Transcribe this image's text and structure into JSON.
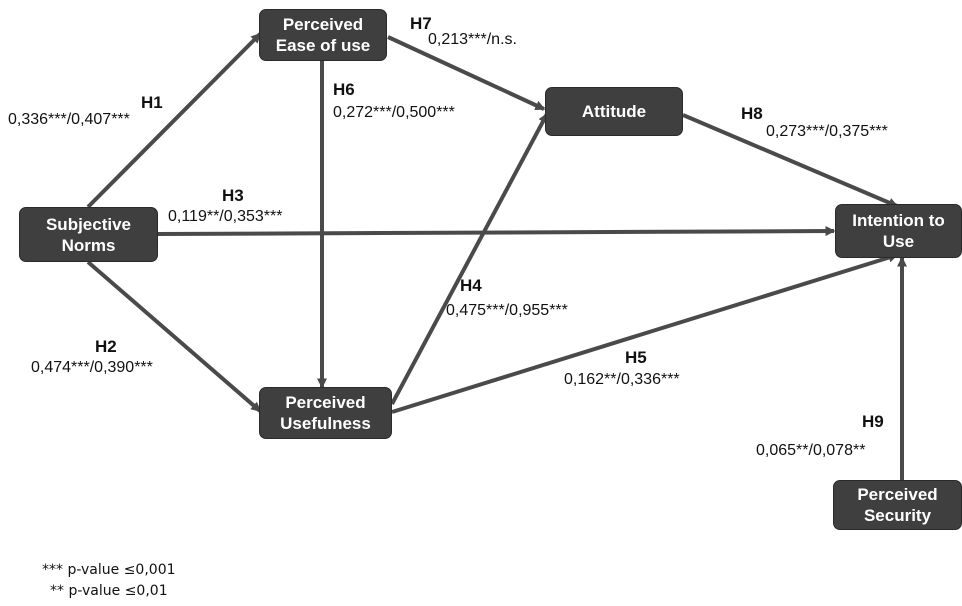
{
  "nodes": {
    "ease": "Perceived\nEase of use",
    "attitude": "Attitude",
    "norms": "Subjective\nNorms",
    "usefulness": "Perceived\nUsefulness",
    "intention": "Intention to\nUse",
    "security": "Perceived\nSecurity"
  },
  "hypotheses": [
    {
      "id": "H1",
      "value": "0,336***/0,407***"
    },
    {
      "id": "H2",
      "value": "0,474***/0,390***"
    },
    {
      "id": "H3",
      "value": "0,119**/0,353***"
    },
    {
      "id": "H4",
      "value": "0,475***/0,955***"
    },
    {
      "id": "H5",
      "value": "0,162**/0,336***"
    },
    {
      "id": "H6",
      "value": "0,272***/0,500***"
    },
    {
      "id": "H7",
      "value": "0,213***/n.s."
    },
    {
      "id": "H8",
      "value": "0,273***/0,375***"
    },
    {
      "id": "H9",
      "value": "0,065**/0,078**"
    }
  ],
  "legend": [
    "*** p-value ≤0,001",
    "** p-value ≤0,01"
  ],
  "colors": {
    "node_fill": "#3f3f3f",
    "arrow": "#4a4a4a",
    "node_text": "#ffffff"
  }
}
